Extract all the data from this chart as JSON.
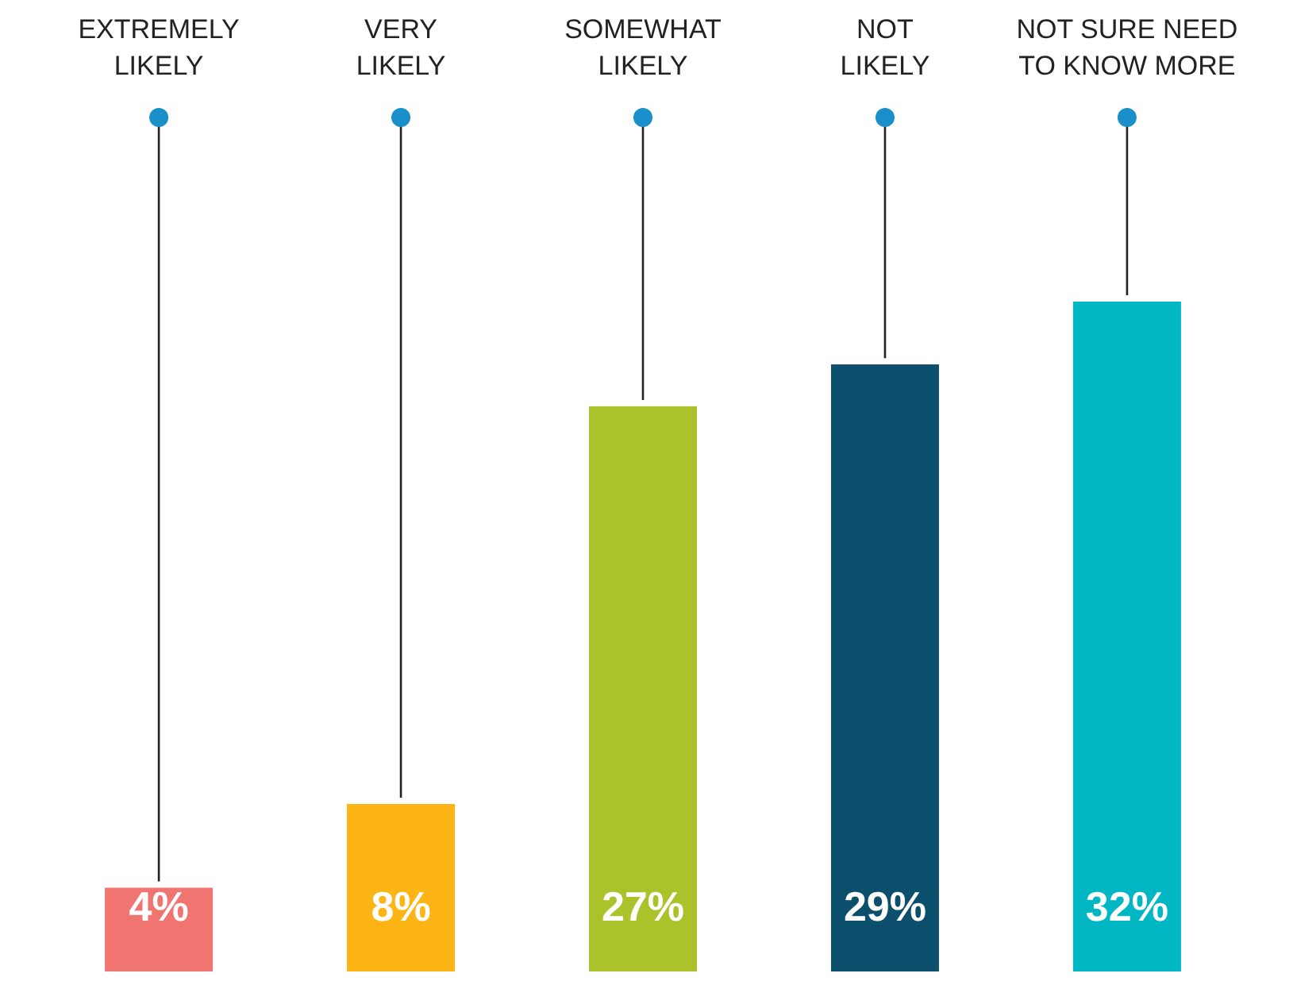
{
  "chart_data": {
    "type": "bar",
    "categories": [
      "EXTREMELY\nLIKELY",
      "VERY\nLIKELY",
      "SOMEWHAT\nLIKELY",
      "NOT\nLIKELY",
      "NOT SURE NEED\nTO KNOW MORE"
    ],
    "values": [
      4,
      8,
      27,
      29,
      32
    ],
    "colors": [
      "#f07470",
      "#fdb515",
      "#acc22a",
      "#0b4f6c",
      "#00b7c3"
    ],
    "value_labels": [
      "4%",
      "8%",
      "27%",
      "29%",
      "32%"
    ]
  }
}
